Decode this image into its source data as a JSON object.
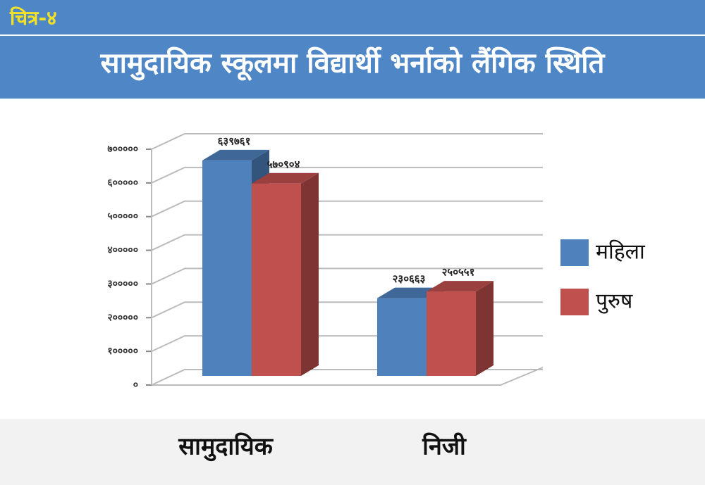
{
  "figure_label": "चित्र-४",
  "chart_data": {
    "type": "bar3d",
    "title": "सामुदायिक स्कूलमा विद्यार्थी भर्नाको लैंगिक स्थिति",
    "categories": [
      "सामुदायिक",
      "निजी"
    ],
    "series": [
      {
        "name": "महिला",
        "color": "#4f81bd",
        "values": [
          639761,
          230663
        ],
        "value_labels": [
          "६३९७६१",
          "२३०६६३"
        ]
      },
      {
        "name": "पुरुष",
        "color": "#c0504d",
        "values": [
          570904,
          250551
        ],
        "value_labels": [
          "५७०९०४",
          "२५०५५१"
        ]
      }
    ],
    "ylim": [
      0,
      700000
    ],
    "yticks": [
      {
        "value": 0,
        "label": "०"
      },
      {
        "value": 100000,
        "label": "१०००००"
      },
      {
        "value": 200000,
        "label": "२०००००"
      },
      {
        "value": 300000,
        "label": "३०००००"
      },
      {
        "value": 400000,
        "label": "४०००००"
      },
      {
        "value": 500000,
        "label": "५०००००"
      },
      {
        "value": 600000,
        "label": "६०००००"
      },
      {
        "value": 700000,
        "label": "७०००००"
      }
    ],
    "grid": true,
    "legend": "right"
  }
}
